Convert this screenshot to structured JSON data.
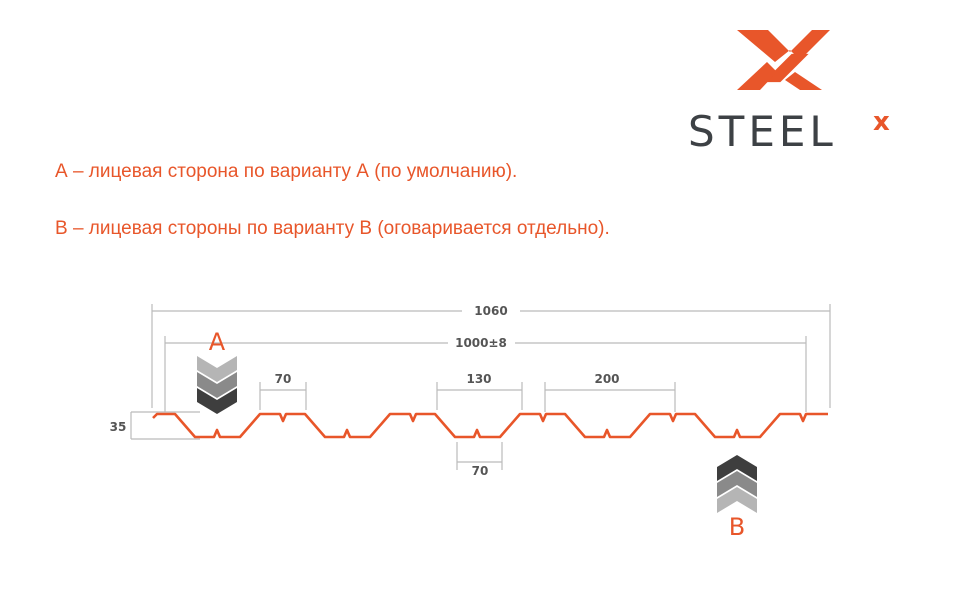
{
  "logo": {
    "text": "STEELX",
    "brand_color": "#e8562a",
    "text_color": "#3d4145"
  },
  "notes": [
    "А – лицевая сторона по варианту А (по умолчанию).",
    "В – лицевая стороны по варианту В (оговаривается отдельно)."
  ],
  "dimensions": {
    "total_width": "1060",
    "useful_width": "1000±8",
    "rib_top": "70",
    "rib_top_span": "130",
    "pitch": "200",
    "rib_bottom": "70",
    "height": "35"
  },
  "sides": {
    "a": "A",
    "b": "B"
  },
  "colors": {
    "profile": "#e8562a",
    "dimension_lines": "#bbbbbb"
  }
}
